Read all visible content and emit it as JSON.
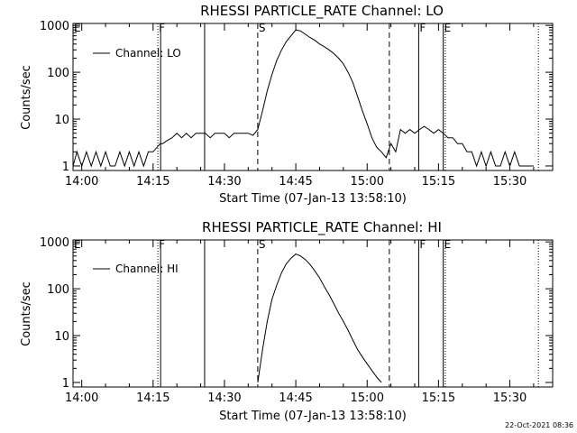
{
  "timestamp": "22-Oct-2021 08:36",
  "chart_data": [
    {
      "type": "line",
      "title": "RHESSI PARTICLE_RATE Channel: LO",
      "xlabel": "Start Time (07-Jan-13 13:58:10)",
      "ylabel": "Counts/sec",
      "yscale": "log",
      "xlim": [
        "13:58:10",
        "15:39:00"
      ],
      "ylim": [
        0.8,
        1100
      ],
      "xticks": [
        "14:00",
        "14:15",
        "14:30",
        "14:45",
        "15:00",
        "15:15",
        "15:30"
      ],
      "yticks": [
        "1",
        "10",
        "100",
        "1000"
      ],
      "legend": {
        "label": "Channel: LO",
        "position": "top-left"
      },
      "markers": [
        {
          "time": "13:58:10",
          "label": "E",
          "style": "dotted"
        },
        {
          "time": "14:16:00",
          "label": "F",
          "style": "dotted"
        },
        {
          "time": "14:16:35",
          "label": "",
          "style": "solid"
        },
        {
          "time": "14:25:50",
          "label": "",
          "style": "solid"
        },
        {
          "time": "14:37:00",
          "label": "S",
          "style": "dashed"
        },
        {
          "time": "15:04:40",
          "label": "",
          "style": "dashed"
        },
        {
          "time": "15:10:50",
          "label": "F",
          "style": "solid"
        },
        {
          "time": "15:16:00",
          "label": "E",
          "style": "solid"
        },
        {
          "time": "15:16:25",
          "label": "",
          "style": "dotted"
        },
        {
          "time": "15:36:00",
          "label": "",
          "style": "dotted"
        }
      ],
      "series": [
        {
          "name": "Channel: LO",
          "x": [
            "13:58:10",
            "13:59:00",
            "14:00:00",
            "14:01:00",
            "14:02:00",
            "14:03:00",
            "14:04:00",
            "14:05:00",
            "14:06:00",
            "14:07:00",
            "14:08:00",
            "14:09:00",
            "14:10:00",
            "14:11:00",
            "14:12:00",
            "14:13:00",
            "14:14:00",
            "14:15:00",
            "14:16:30",
            "14:17:00",
            "14:18:00",
            "14:19:00",
            "14:20:00",
            "14:21:00",
            "14:22:00",
            "14:23:00",
            "14:24:00",
            "14:25:00",
            "14:26:00",
            "14:27:00",
            "14:28:00",
            "14:29:00",
            "14:30:00",
            "14:31:00",
            "14:32:00",
            "14:33:00",
            "14:34:00",
            "14:35:00",
            "14:36:00",
            "14:37:00",
            "14:38:00",
            "14:39:00",
            "14:40:00",
            "14:41:00",
            "14:42:00",
            "14:43:00",
            "14:44:00",
            "14:45:00",
            "14:46:00",
            "14:47:00",
            "14:48:00",
            "14:49:00",
            "14:50:00",
            "14:51:00",
            "14:52:00",
            "14:53:00",
            "14:54:00",
            "14:55:00",
            "14:56:00",
            "14:57:00",
            "14:58:00",
            "14:59:00",
            "15:00:00",
            "15:01:00",
            "15:02:00",
            "15:03:00",
            "15:04:00",
            "15:05:00",
            "15:06:00",
            "15:07:00",
            "15:08:00",
            "15:09:00",
            "15:10:00",
            "15:11:00",
            "15:12:00",
            "15:13:00",
            "15:14:00",
            "15:15:00",
            "15:16:00",
            "15:17:00",
            "15:18:00",
            "15:19:00",
            "15:20:00",
            "15:21:00",
            "15:22:00",
            "15:23:00",
            "15:24:00",
            "15:25:00",
            "15:26:00",
            "15:27:00",
            "15:28:00",
            "15:29:00",
            "15:30:00",
            "15:31:00",
            "15:32:00",
            "15:33:00",
            "15:34:00",
            "15:35:00"
          ],
          "y": [
            1,
            2,
            1,
            2,
            1,
            2,
            1,
            2,
            1,
            1,
            2,
            1,
            2,
            1,
            2,
            1,
            2,
            2,
            3,
            3,
            3.5,
            4,
            5,
            4,
            5,
            4,
            5,
            5,
            5,
            4,
            5,
            5,
            5,
            4,
            5,
            5,
            5,
            5,
            4.5,
            6,
            15,
            40,
            90,
            180,
            300,
            450,
            600,
            800,
            760,
            650,
            550,
            480,
            400,
            350,
            300,
            250,
            200,
            150,
            100,
            60,
            30,
            15,
            8,
            4,
            2.5,
            2,
            1.5,
            3,
            2,
            6,
            5,
            6,
            5,
            6,
            7,
            6,
            5,
            6,
            5,
            4,
            4,
            3,
            3,
            2,
            2,
            1,
            2,
            1,
            2,
            1,
            1,
            2,
            1,
            2,
            1,
            1,
            1,
            1
          ],
          "note": ""
        }
      ]
    },
    {
      "type": "line",
      "title": "RHESSI PARTICLE_RATE Channel: HI",
      "xlabel": "Start Time (07-Jan-13 13:58:10)",
      "ylabel": "Counts/sec",
      "yscale": "log",
      "xlim": [
        "13:58:10",
        "15:39:00"
      ],
      "ylim": [
        0.8,
        1100
      ],
      "xticks": [
        "14:00",
        "14:15",
        "14:30",
        "14:45",
        "15:00",
        "15:15",
        "15:30"
      ],
      "yticks": [
        "1",
        "10",
        "100",
        "1000"
      ],
      "legend": {
        "label": "Channel: HI",
        "position": "top-left"
      },
      "markers": [
        {
          "time": "13:58:10",
          "label": "E",
          "style": "dotted"
        },
        {
          "time": "14:16:00",
          "label": "F",
          "style": "dotted"
        },
        {
          "time": "14:16:35",
          "label": "",
          "style": "solid"
        },
        {
          "time": "14:25:50",
          "label": "",
          "style": "solid"
        },
        {
          "time": "14:37:00",
          "label": "S",
          "style": "dashed"
        },
        {
          "time": "15:04:40",
          "label": "",
          "style": "dashed"
        },
        {
          "time": "15:10:50",
          "label": "F",
          "style": "solid"
        },
        {
          "time": "15:16:00",
          "label": "E",
          "style": "solid"
        },
        {
          "time": "15:16:25",
          "label": "",
          "style": "dotted"
        },
        {
          "time": "15:36:00",
          "label": "",
          "style": "dotted"
        }
      ],
      "series": [
        {
          "name": "Channel: HI",
          "x": [
            "14:37:00",
            "14:38:00",
            "14:39:00",
            "14:40:00",
            "14:41:00",
            "14:42:00",
            "14:43:00",
            "14:44:00",
            "14:45:00",
            "14:46:00",
            "14:47:00",
            "14:48:00",
            "14:49:00",
            "14:50:00",
            "14:51:00",
            "14:52:00",
            "14:53:00",
            "14:54:00",
            "14:55:00",
            "14:56:00",
            "14:57:00",
            "14:58:00",
            "14:59:00",
            "15:00:00",
            "15:01:00",
            "15:02:00",
            "15:03:00"
          ],
          "y": [
            1,
            5,
            20,
            60,
            120,
            220,
            340,
            450,
            550,
            500,
            420,
            330,
            240,
            170,
            110,
            75,
            48,
            30,
            20,
            13,
            8,
            5,
            3.5,
            2.5,
            1.8,
            1.3,
            1
          ]
        }
      ]
    }
  ]
}
